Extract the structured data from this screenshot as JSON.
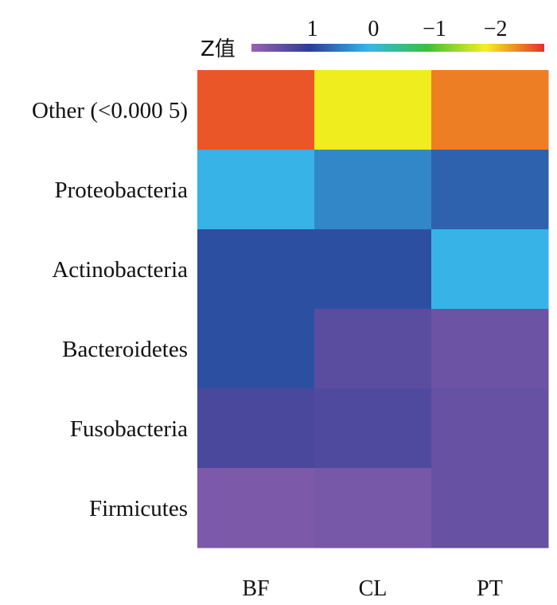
{
  "chart_data": {
    "type": "heatmap",
    "title": "",
    "rows": [
      "Other (<0.000 5)",
      "Proteobacteria",
      "Actinobacteria",
      "Bacteroidetes",
      "Fusobacteria",
      "Firmicutes"
    ],
    "columns": [
      "BF",
      "CL",
      "PT"
    ],
    "values": [
      [
        -2.6,
        -1.8,
        -2.4
      ],
      [
        0.1,
        0.45,
        0.75
      ],
      [
        0.9,
        0.9,
        0.1
      ],
      [
        0.9,
        1.45,
        1.6
      ],
      [
        1.3,
        1.35,
        1.55
      ],
      [
        1.75,
        1.7,
        1.55
      ]
    ],
    "colorbar": {
      "title": "Z值",
      "ticks": [
        {
          "value": 1,
          "label": "1"
        },
        {
          "value": 0,
          "label": "0"
        },
        {
          "value": -1,
          "label": "−1"
        },
        {
          "value": -2,
          "label": "−2"
        }
      ],
      "range": [
        2,
        -2.8
      ],
      "orientation": "horizontal",
      "placement": "top",
      "colors": [
        "#9a62b0",
        "#2b3e94",
        "#37b5ea",
        "#3cbf3c",
        "#f7ef1c",
        "#e62e2a"
      ]
    }
  }
}
